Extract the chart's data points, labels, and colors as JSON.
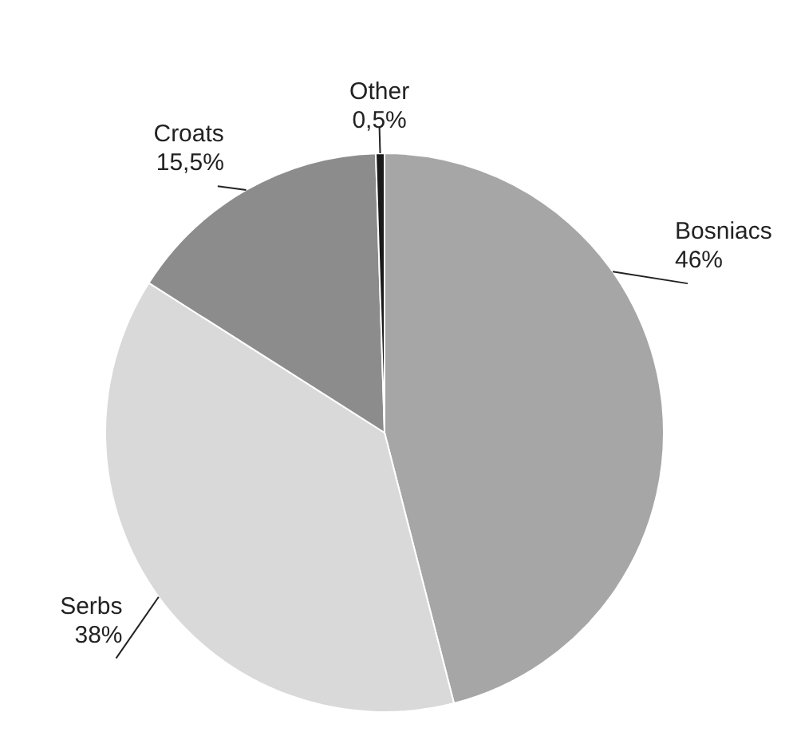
{
  "chart_data": {
    "type": "pie",
    "categories": [
      "Bosniacs",
      "Serbs",
      "Croats",
      "Other"
    ],
    "values": [
      46,
      38,
      15.5,
      0.5
    ],
    "value_labels": [
      "46%",
      "38%",
      "15,5%",
      "0,5%"
    ],
    "colors": [
      "#a6a6a6",
      "#d9d9d9",
      "#8c8c8c",
      "#1a1a1a"
    ],
    "legend": false
  }
}
